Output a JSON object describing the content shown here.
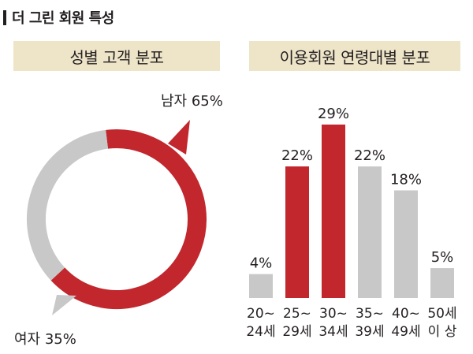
{
  "header": {
    "title": "더 그린 회원 특성"
  },
  "sections": {
    "gender_title": "성별 고객 분포",
    "age_title": "이용회원 연령대별 분포"
  },
  "colors": {
    "accent": "#c1272d",
    "neutral": "#c8c8c8",
    "band": "#eee4c8",
    "text": "#231f20"
  },
  "chart_data": [
    {
      "type": "pie",
      "title": "성별 고객 분포",
      "slices": [
        {
          "name": "남자",
          "value": 65,
          "label": "남자 65%",
          "color": "#c1272d"
        },
        {
          "name": "여자",
          "value": 35,
          "label": "여자 35%",
          "color": "#c8c8c8"
        }
      ]
    },
    {
      "type": "bar",
      "title": "이용회원 연령대별 분포",
      "categories": [
        [
          "20~",
          "24세"
        ],
        [
          "25~",
          "29세"
        ],
        [
          "30~",
          "34세"
        ],
        [
          "35~",
          "39세"
        ],
        [
          "40~",
          "49세"
        ],
        [
          "50세",
          "이 상"
        ]
      ],
      "values": [
        4,
        22,
        29,
        22,
        18,
        5
      ],
      "value_labels": [
        "4%",
        "22%",
        "29%",
        "22%",
        "18%",
        "5%"
      ],
      "highlight": [
        false,
        true,
        true,
        false,
        false,
        false
      ],
      "ylim": [
        0,
        29
      ]
    }
  ]
}
